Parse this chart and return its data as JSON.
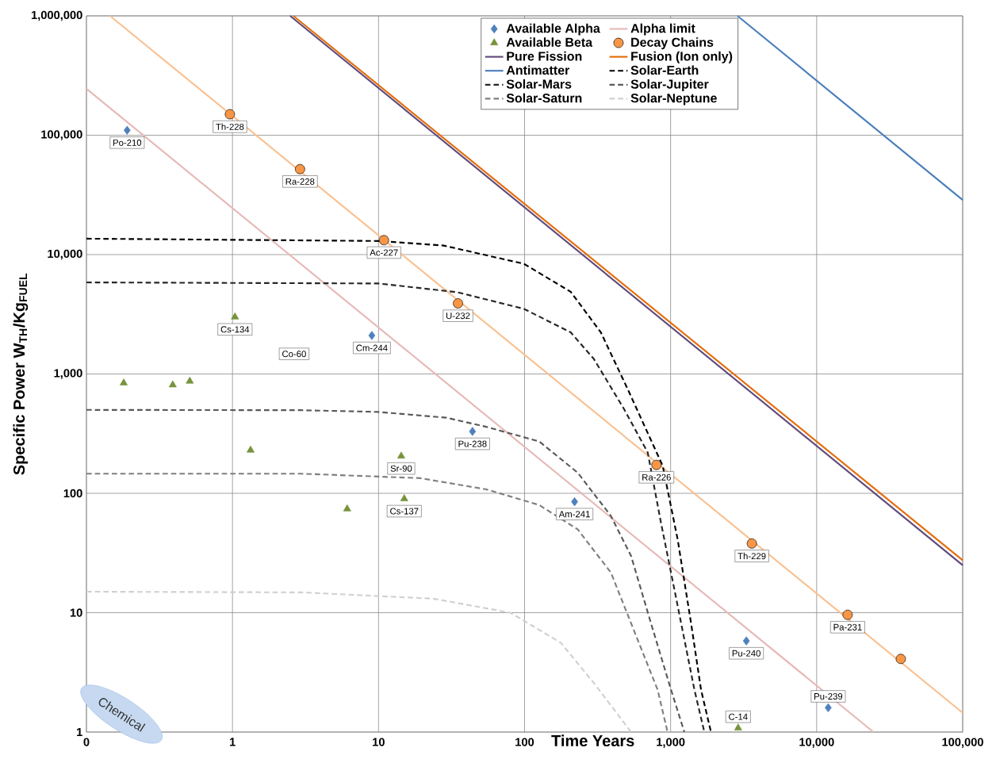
{
  "chart_data": {
    "type": "line",
    "xlabel": "Time Years",
    "ylabel": "Specific Power W$_{TH}$/Kg$_{FUEL}$",
    "log": "xy",
    "grid": true,
    "legend": "top",
    "xlim": [
      0.1,
      100000
    ],
    "ylim": [
      1,
      1000000
    ],
    "xticks": [
      {
        "value": 0.1,
        "label": "0"
      },
      1,
      10,
      100,
      {
        "value": 1000,
        "label": "1,000"
      },
      {
        "value": 10000,
        "label": "10,000"
      },
      {
        "value": 100000,
        "label": "100,000"
      }
    ],
    "yticks": [
      1,
      10,
      100,
      {
        "value": 1000,
        "label": "1,000"
      },
      {
        "value": 10000,
        "label": "10,000"
      },
      {
        "value": 100000,
        "label": "100,000"
      },
      {
        "value": 1000000,
        "label": "1,000,000"
      }
    ],
    "series": [
      {
        "name": "Available Alpha",
        "type": "scatter",
        "marker": "diamond",
        "color": "#4f81bd",
        "x": [
          0.19,
          9,
          44,
          220,
          3300,
          12000
        ],
        "values": [
          110000,
          2100,
          330,
          85,
          5.8,
          1.6
        ]
      },
      {
        "name": "Alpha limit",
        "marker": "none",
        "line_style": "solid",
        "color": "#e6b9b8",
        "x": [
          0.1,
          24500
        ],
        "values": [
          245000,
          1
        ]
      },
      {
        "name": "Available Beta",
        "type": "scatter",
        "marker": "triangle",
        "color": "#77933c",
        "x": [
          0.18,
          0.39,
          0.51,
          1.04,
          1.33,
          6.1,
          14.3,
          15,
          2900
        ],
        "values": [
          840,
          810,
          870,
          3000,
          230,
          74,
          205,
          90,
          1.08
        ]
      },
      {
        "marker": "none",
        "line_style": "solid",
        "color": "#fac090",
        "x": [
          0.145,
          100000
        ],
        "values": [
          1000000,
          1.45
        ]
      },
      {
        "name": "Decay Chains",
        "type": "scatter",
        "marker": "circle",
        "color": "#f79646",
        "x": [
          0.96,
          2.9,
          10.9,
          35,
          800,
          3600,
          16300,
          37700
        ],
        "values": [
          150000,
          52000,
          13200,
          3900,
          173,
          38,
          9.6,
          4.1
        ]
      },
      {
        "name": "Pure Fission",
        "marker": "none",
        "line_style": "solid",
        "color": "#604a7b",
        "x": [
          2.48,
          100000
        ],
        "values": [
          1000000,
          25
        ]
      },
      {
        "name": "Fusion (Ion only)",
        "marker": "none",
        "line_style": "solid",
        "color": "#e46c0a",
        "x": [
          2.61,
          100000
        ],
        "values": [
          1000000,
          27.5
        ]
      },
      {
        "name": "Antimatter",
        "marker": "none",
        "line_style": "solid",
        "color": "#4a7ebb",
        "x": [
          2870,
          100000
        ],
        "values": [
          1000000,
          28700
        ]
      },
      {
        "name": "Solar-Earth",
        "marker": "none",
        "line_style": "dashed",
        "color": "#000000",
        "x": [
          0.1,
          10,
          28,
          99,
          207,
          333,
          508,
          883,
          1118,
          1380,
          1616,
          1890
        ],
        "values": [
          13600,
          13000,
          11900,
          8370,
          4880,
          2230,
          748,
          170,
          41,
          8.2,
          2.26,
          1
        ]
      },
      {
        "name": "Solar-Mars",
        "marker": "none",
        "line_style": "dashed",
        "color": "#262626",
        "x": [
          0.1,
          10,
          34.6,
          99,
          207,
          298,
          480,
          697,
          859,
          1118,
          1456,
          1702
        ],
        "values": [
          5850,
          5730,
          4840,
          3510,
          2230,
          1336,
          508,
          220,
          56.8,
          11.4,
          2.26,
          1
        ]
      },
      {
        "name": "Solar-Jupiter",
        "marker": "none",
        "line_style": "dashed",
        "color": "#595959",
        "x": [
          0.1,
          2.96,
          9.9,
          29.2,
          54.5,
          126,
          231,
          390,
          536,
          733,
          1007,
          1242
        ],
        "values": [
          500,
          497,
          481,
          430,
          361,
          272,
          149,
          64.7,
          29.9,
          8.2,
          2.26,
          1
        ]
      },
      {
        "name": "Solar-Saturn",
        "marker": "none",
        "line_style": "dashed",
        "color": "#7f7f7f",
        "x": [
          0.1,
          2.96,
          19.3,
          54.6,
          126,
          231,
          390,
          594,
          815,
          953
        ],
        "values": [
          146,
          146,
          134,
          108,
          79.8,
          49.9,
          21.7,
          5.96,
          2.26,
          1
        ]
      },
      {
        "name": "Solar-Neptune",
        "marker": "none",
        "line_style": "dashed",
        "color": "#d0d0d0",
        "x": [
          0.1,
          2.96,
          23.8,
          80,
          177,
          298,
          536
        ],
        "values": [
          15,
          14.8,
          13.1,
          10,
          5.6,
          2.58,
          1
        ]
      }
    ],
    "annotations": [
      {
        "text": "Po-210",
        "x": 0.19,
        "y": 110000
      },
      {
        "text": "Th-228",
        "x": 0.96,
        "y": 150000
      },
      {
        "text": "Ra-228",
        "x": 2.9,
        "y": 52000
      },
      {
        "text": "Ac-227",
        "x": 10.9,
        "y": 13200
      },
      {
        "text": "U-232",
        "x": 35,
        "y": 3900
      },
      {
        "text": "Cs-134",
        "x": 1.04,
        "y": 3000
      },
      "Co-60",
      {
        "text": "Cm-244",
        "x": 9,
        "y": 2100
      },
      {
        "text": "Pu-238",
        "x": 44,
        "y": 330
      },
      {
        "text": "Ra-226",
        "x": 800,
        "y": 173
      },
      {
        "text": "Sr-90",
        "x": 14.3,
        "y": 205
      },
      {
        "text": "Cs-137",
        "x": 15,
        "y": 90
      },
      {
        "text": "Am-241",
        "x": 220,
        "y": 85
      },
      {
        "text": "Th-229",
        "x": 3600,
        "y": 38
      },
      {
        "text": "Pa-231",
        "x": 16300,
        "y": 9.6
      },
      {
        "text": "Pu-240",
        "x": 3300,
        "y": 5.8
      },
      {
        "text": "C-14",
        "x": 2900,
        "y": 1.08
      },
      {
        "text": "Pu-239",
        "x": 12000,
        "y": 1.6
      },
      "Chemical"
    ]
  }
}
